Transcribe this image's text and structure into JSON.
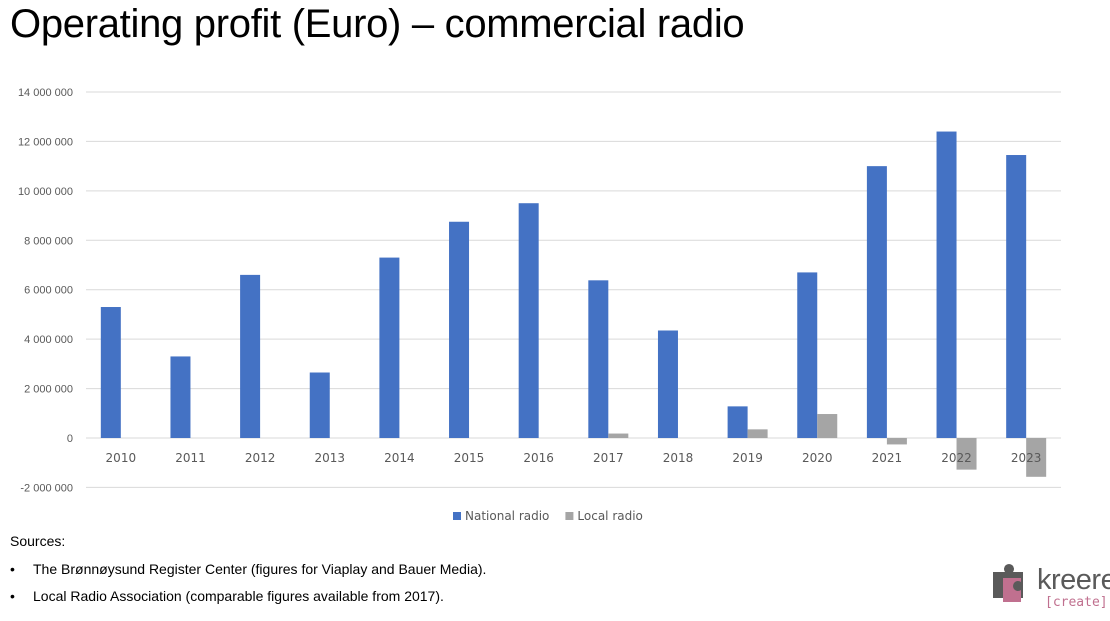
{
  "title": "Operating profit (Euro) – commercial radio",
  "chart_data": {
    "type": "bar",
    "title": "",
    "xlabel": "",
    "ylabel": "",
    "categories": [
      "2010",
      "2011",
      "2012",
      "2013",
      "2014",
      "2015",
      "2016",
      "2017",
      "2018",
      "2019",
      "2020",
      "2021",
      "2022",
      "2023"
    ],
    "series": [
      {
        "name": "National radio",
        "color": "#4472c4",
        "values": [
          5300000,
          3300000,
          6600000,
          2650000,
          7300000,
          8750000,
          9500000,
          6380000,
          4350000,
          1280000,
          6700000,
          11000000,
          12400000,
          11450000
        ]
      },
      {
        "name": "Local radio",
        "color": "#a5a5a5",
        "values": [
          null,
          null,
          null,
          null,
          null,
          null,
          null,
          180000,
          null,
          350000,
          970000,
          -260000,
          -1280000,
          -1570000
        ]
      }
    ],
    "ylim": [
      -2000000,
      14000000
    ],
    "yticks": [
      -2000000,
      0,
      2000000,
      4000000,
      6000000,
      8000000,
      10000000,
      12000000,
      14000000
    ],
    "ytick_labels": [
      "-2 000 000",
      "0",
      "2 000 000",
      "4 000 000",
      "6 000 000",
      "8 000 000",
      "10 000 000",
      "12 000 000",
      "14 000 000"
    ],
    "grid": true,
    "legend": "bottom-center"
  },
  "sources": {
    "heading": "Sources:",
    "bullet": "•",
    "items": [
      "The Brønnøysund Register Center (figures for Viaplay and Bauer Media).",
      "Local Radio Association (comparable figures available from 2017)."
    ]
  },
  "logo": {
    "word": "kreere",
    "sub": "[create]",
    "accent": "#c0708f",
    "icon": "puzzle-logo-icon"
  }
}
